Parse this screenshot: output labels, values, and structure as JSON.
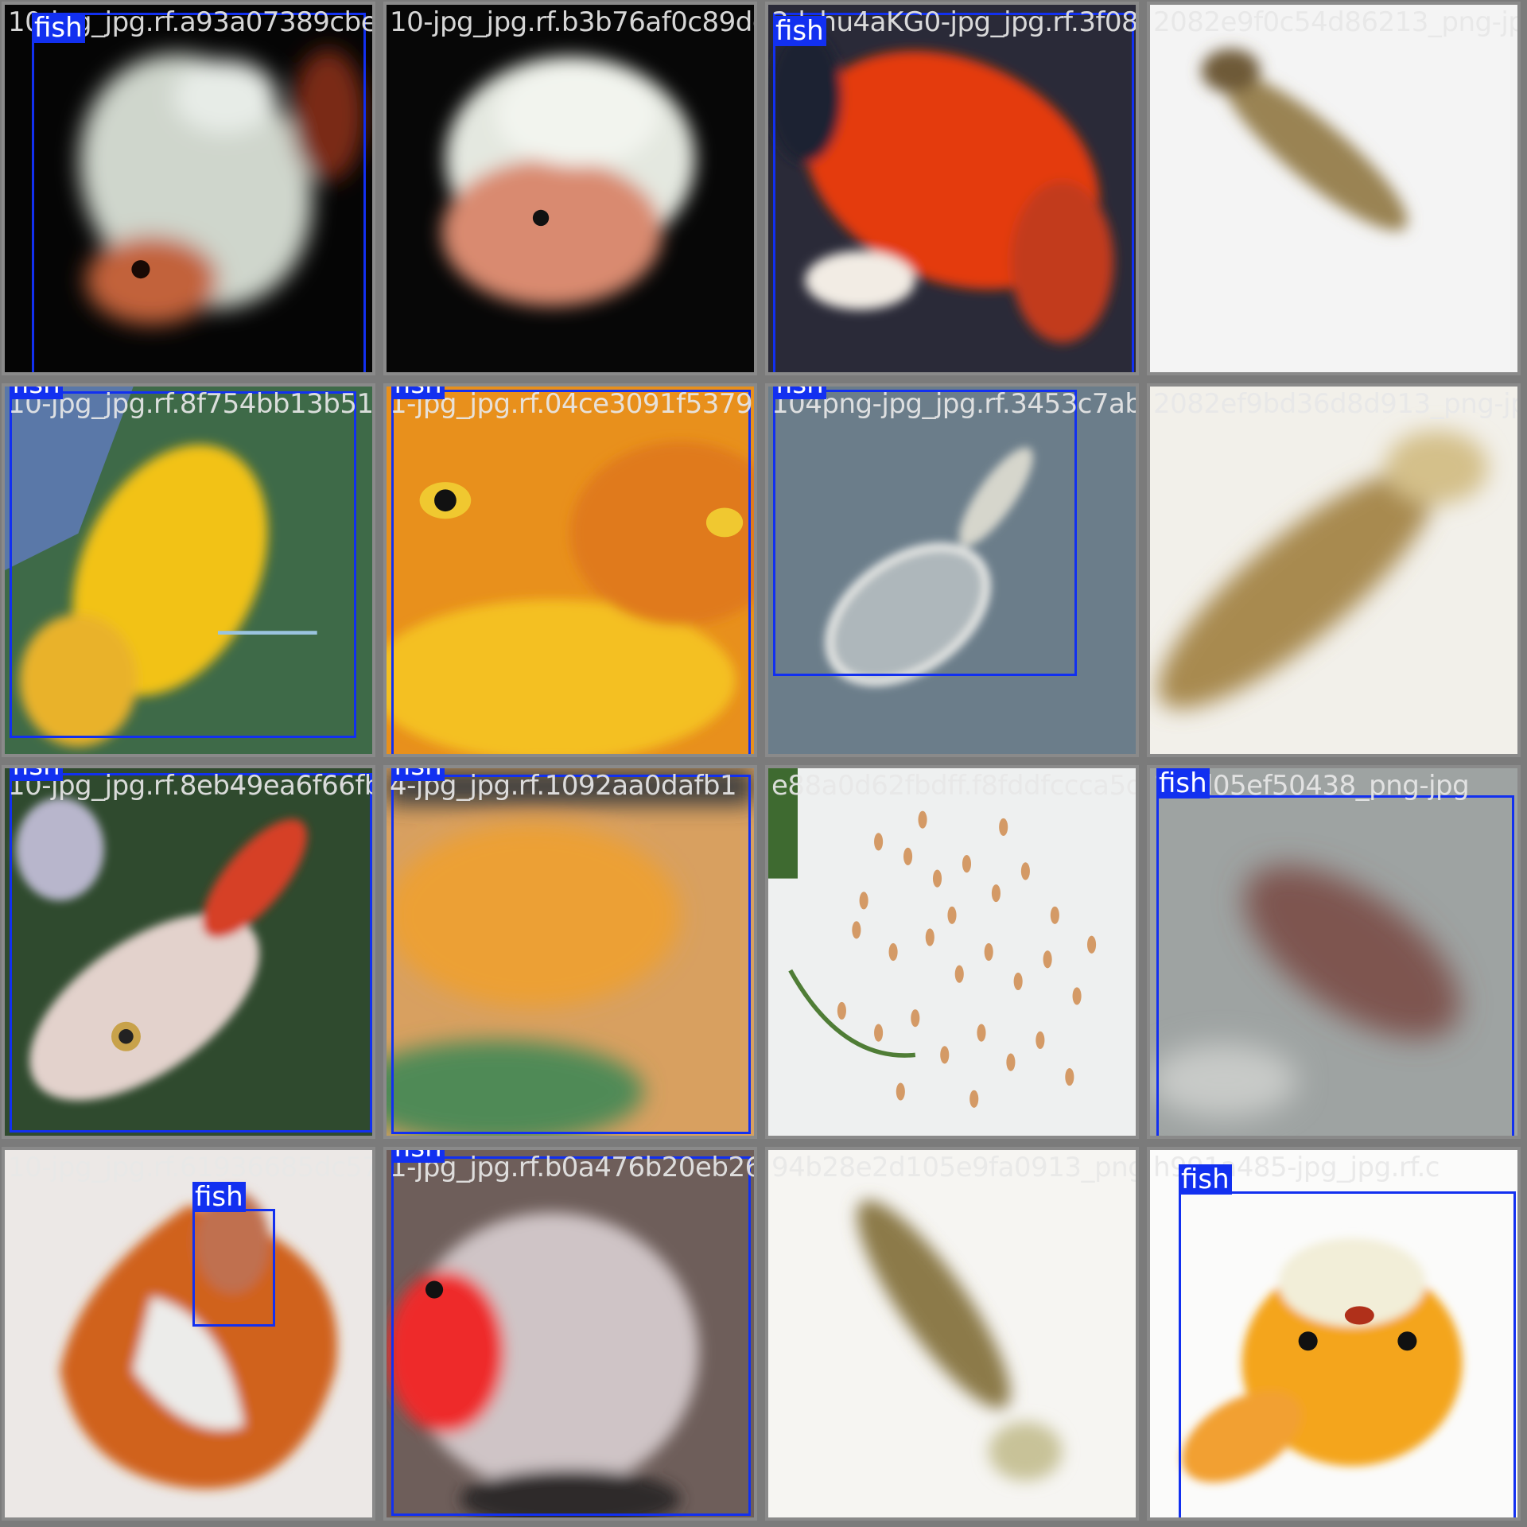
{
  "tiles": [
    {
      "filename": "10-jpg_jpg.rf.a93a07389cbefa0ebf3bd76d0d639dd0b62a34",
      "scene": "dark-koi",
      "labels": [
        {
          "class": "fish"
        }
      ]
    },
    {
      "filename": "10-jpg_jpg.rf.b3b76af0c89dd0b62a34",
      "scene": "white-koi",
      "labels": []
    },
    {
      "filename": "3dchu4aKG0-jpg_jpg.rf.3f08be9f0c5b4d86213_png-jpg",
      "scene": "red-fish",
      "labels": [
        {
          "class": "fish"
        }
      ]
    },
    {
      "filename": "2082e9f0c54d86213_png-jpg",
      "scene": "pale-fry",
      "labels": []
    },
    {
      "filename": "10-jpg_jpg.rf.8f754bb13b51a4fbcaf770fd9b",
      "scene": "yellow-fish",
      "labels": [
        {
          "class": "fish"
        }
      ]
    },
    {
      "filename": "1-jpg_jpg.rf.04ce3091f5379",
      "scene": "orange-face",
      "labels": [
        {
          "class": "fish"
        }
      ]
    },
    {
      "filename": "104png-jpg_jpg.rf.3453c7ab0822f9ed8d9f3_png-jpg",
      "scene": "ghost-fish",
      "labels": [
        {
          "class": "fish"
        }
      ]
    },
    {
      "filename": "2082ef9bd36d8d913_png-jpg",
      "scene": "pale-fry-2",
      "labels": []
    },
    {
      "filename": "10-jpg_jpg.rf.8eb49ea6f66fbkf4f990e8f4f6551092aa0dafb1e88a0d62fbdff.f8fddfccca5de",
      "scene": "white-red-fish",
      "labels": [
        {
          "class": "fish"
        }
      ]
    },
    {
      "filename": "4-jpg_jpg.rf.1092aa0dafb1",
      "scene": "green-orange",
      "labels": [
        {
          "class": "fish"
        }
      ]
    },
    {
      "filename": "e88a0d62fbdff.f8fddfccca5de",
      "scene": "fry-swarm",
      "labels": []
    },
    {
      "filename": "16fd05ef50438_png-jpg",
      "scene": "grey-blur",
      "labels": [
        {
          "class": "fish"
        }
      ]
    },
    {
      "filename": "10-jpg_jpg.rf.61936685dc57c1684201 8b0a476b20eb263",
      "scene": "orange-bowl",
      "labels": [
        {
          "class": "fish"
        }
      ]
    },
    {
      "filename": "1-jpg_jpg.rf.b0a476b20eb26394b28e2d105e9fa0913_png-jpg",
      "scene": "redcap",
      "labels": [
        {
          "class": "fish"
        }
      ]
    },
    {
      "filename": "94b28e2d105e9fa0913_png-jpg",
      "scene": "pale-fry-3",
      "labels": []
    },
    {
      "filename": "h991a485-jpg_jpg.rf.c",
      "scene": "goldfish-front",
      "labels": [
        {
          "class": "fish"
        }
      ]
    }
  ]
}
